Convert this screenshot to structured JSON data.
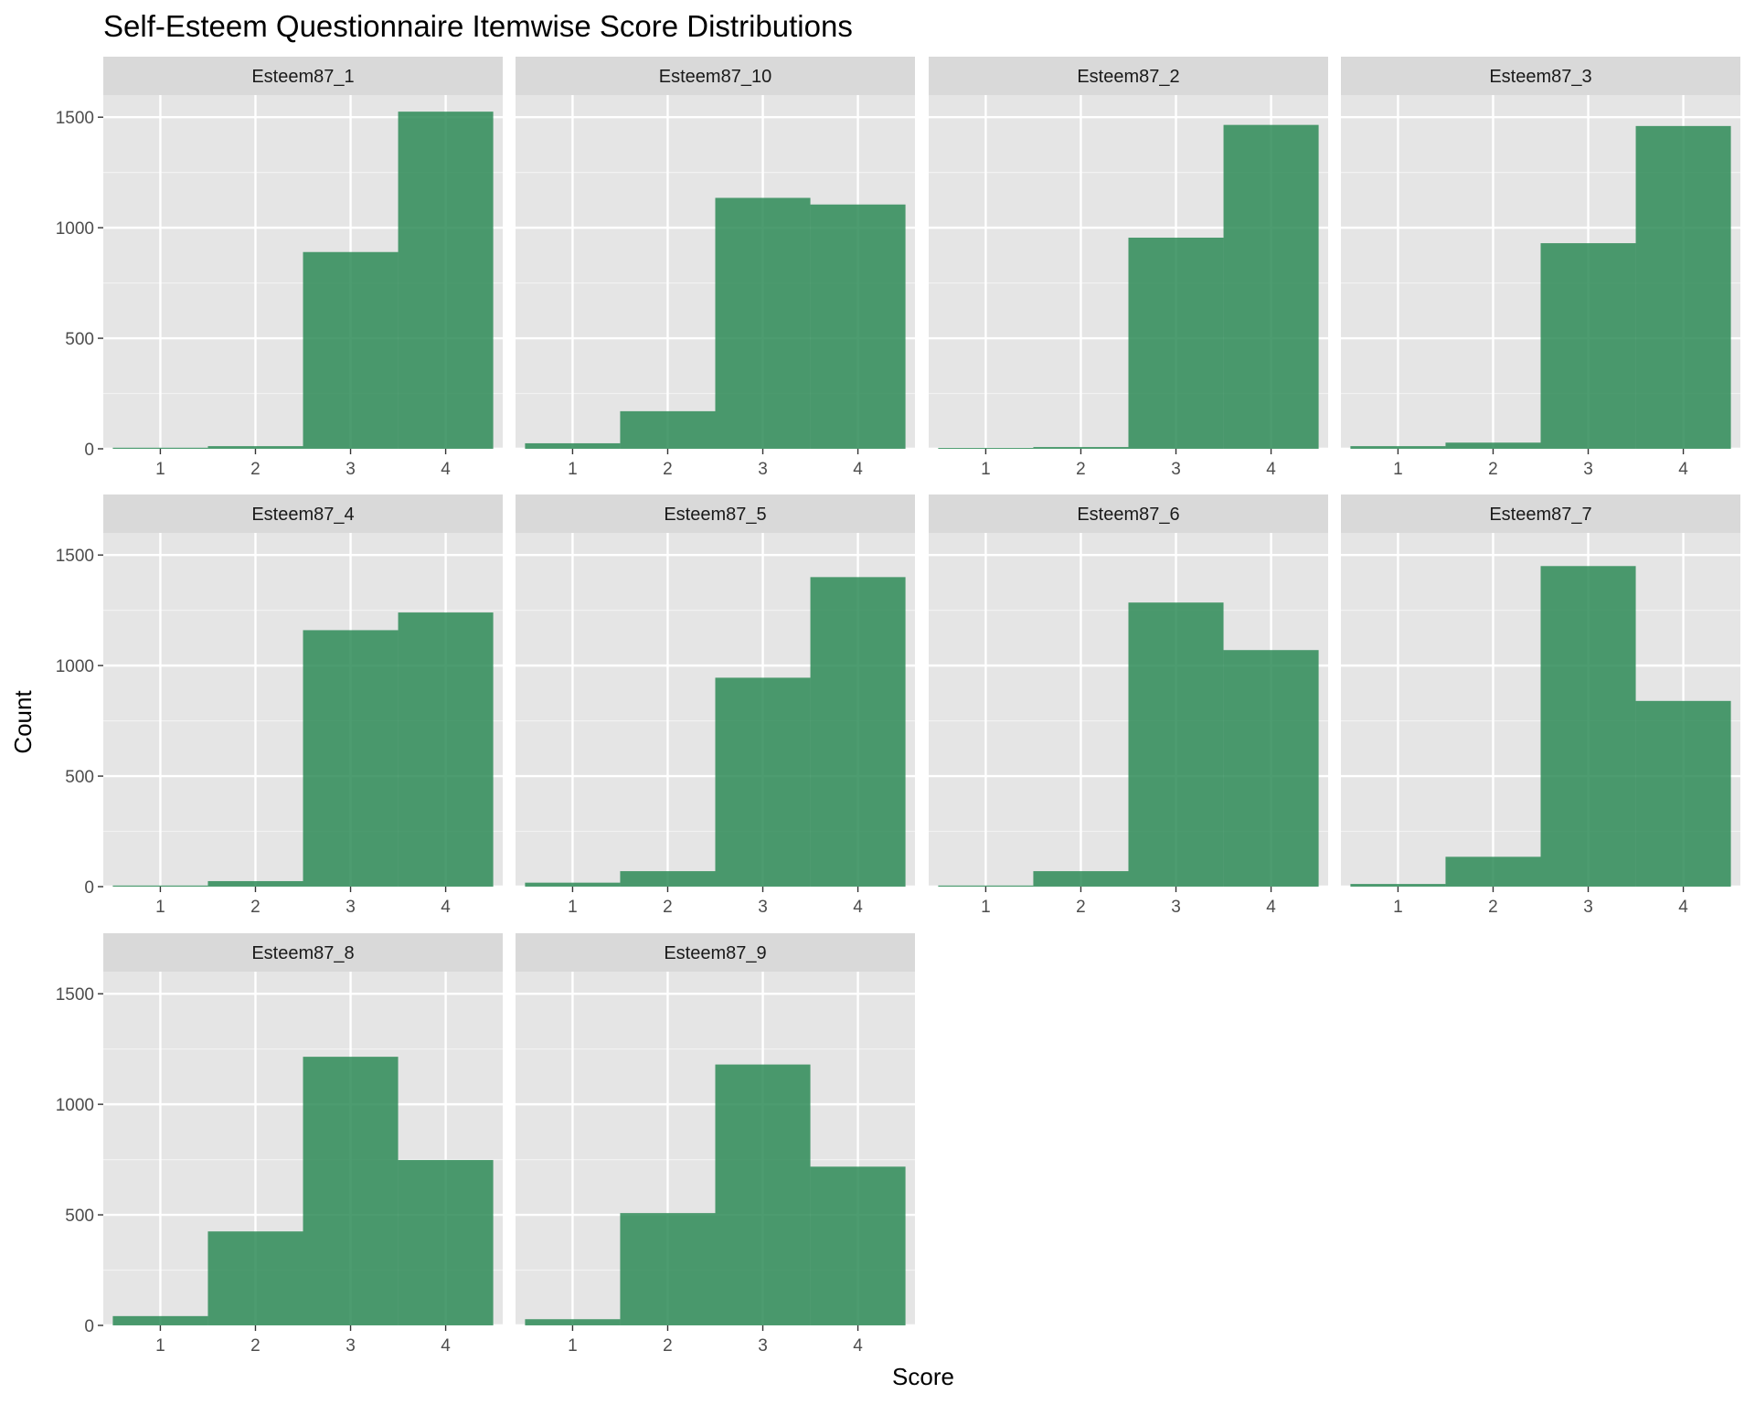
{
  "chart_data": {
    "type": "bar",
    "title": "Self-Esteem Questionnaire Itemwise Score Distributions",
    "xlabel": "Score",
    "ylabel": "Count",
    "categories": [
      "1",
      "2",
      "3",
      "4"
    ],
    "ylim": [
      0,
      1600
    ],
    "yticks": [
      0,
      500,
      1000,
      1500
    ],
    "bar_color": "#2e8b57",
    "panel_background": "#e5e5e5",
    "strip_background": "#d9d9d9",
    "grid": true,
    "facets": [
      {
        "name": "Esteem87_1",
        "values": [
          5,
          12,
          890,
          1525
        ]
      },
      {
        "name": "Esteem87_10",
        "values": [
          25,
          170,
          1135,
          1105
        ]
      },
      {
        "name": "Esteem87_2",
        "values": [
          3,
          8,
          955,
          1465
        ]
      },
      {
        "name": "Esteem87_3",
        "values": [
          12,
          28,
          930,
          1460
        ]
      },
      {
        "name": "Esteem87_4",
        "values": [
          5,
          25,
          1160,
          1240
        ]
      },
      {
        "name": "Esteem87_5",
        "values": [
          18,
          70,
          945,
          1400
        ]
      },
      {
        "name": "Esteem87_6",
        "values": [
          5,
          70,
          1285,
          1070
        ]
      },
      {
        "name": "Esteem87_7",
        "values": [
          12,
          135,
          1450,
          840
        ]
      },
      {
        "name": "Esteem87_8",
        "values": [
          42,
          425,
          1215,
          748
        ]
      },
      {
        "name": "Esteem87_9",
        "values": [
          28,
          508,
          1180,
          718
        ]
      }
    ]
  }
}
